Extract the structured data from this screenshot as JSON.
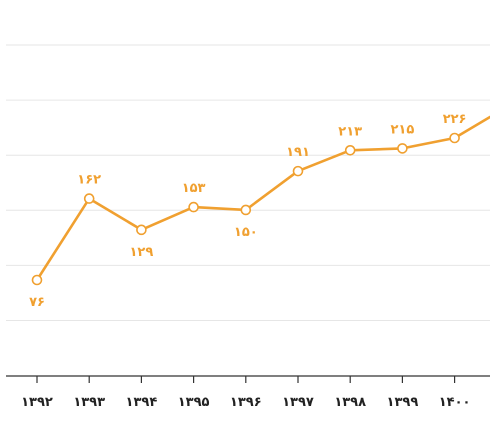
{
  "chart_data": {
    "type": "line",
    "title": "",
    "xlabel": "",
    "ylabel": "",
    "categories": [
      "۱۳۹۲",
      "۱۳۹۳",
      "۱۳۹۴",
      "۱۳۹۵",
      "۱۳۹۶",
      "۱۳۹۷",
      "۱۳۹۸",
      "۱۳۹۹",
      "۱۴۰۰"
    ],
    "series": [
      {
        "values": [
          76,
          162,
          129,
          153,
          150,
          191,
          213,
          215,
          226
        ],
        "labels": [
          "۷۶",
          "۱۶۲",
          "۱۲۹",
          "۱۵۳",
          "۱۵۰",
          "۱۹۱",
          "۲۱۳",
          "۲۱۵",
          "۲۲۶"
        ],
        "label_position": [
          "below",
          "above",
          "below",
          "above",
          "below",
          "above",
          "above",
          "above",
          "above"
        ],
        "color": "#f0a030"
      }
    ],
    "ylim": [
      0,
      250
    ],
    "grid": true,
    "grid_lines": 6,
    "line_continues_past_last_point": true,
    "legend": "none"
  }
}
